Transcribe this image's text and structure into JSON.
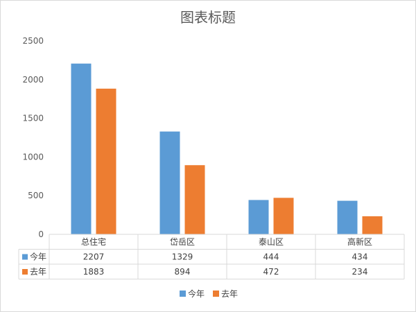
{
  "chart_data": {
    "type": "bar",
    "title": "图表标题",
    "categories": [
      "总住宅",
      "岱岳区",
      "泰山区",
      "高新区"
    ],
    "series": [
      {
        "name": "今年",
        "values": [
          2207,
          1329,
          444,
          434
        ],
        "color": "#5b9bd5"
      },
      {
        "name": "去年",
        "values": [
          1883,
          894,
          472,
          234
        ],
        "color": "#ed7d31"
      }
    ],
    "ylim": [
      0,
      2500
    ],
    "yticks": [
      0,
      500,
      1000,
      1500,
      2000,
      2500
    ],
    "grid": false,
    "data_table": true,
    "legend_position": "bottom"
  }
}
